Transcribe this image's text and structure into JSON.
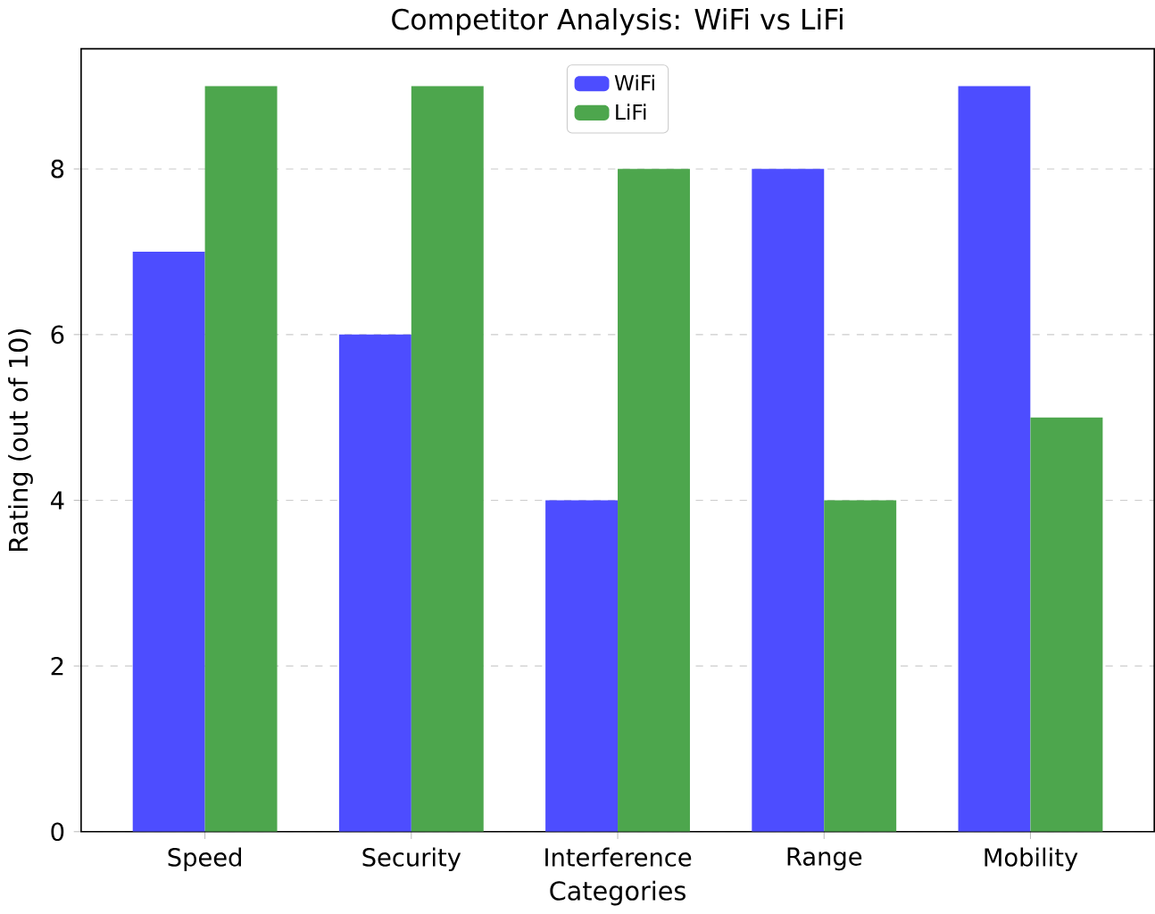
{
  "chart_data": {
    "type": "bar",
    "title": "Competitor Analysis: WiFi vs LiFi",
    "xlabel": "Categories",
    "ylabel": "Rating (out of 10)",
    "categories": [
      "Speed",
      "Security",
      "Interference",
      "Range",
      "Mobility"
    ],
    "series": [
      {
        "name": "WiFi",
        "color": "#4d4dff",
        "values": [
          7,
          6,
          4,
          8,
          9
        ]
      },
      {
        "name": "LiFi",
        "color": "#4da64d",
        "values": [
          9,
          9,
          8,
          4,
          5
        ]
      }
    ],
    "ylim": [
      0,
      9.45
    ],
    "yticks": [
      0,
      2,
      4,
      6,
      8
    ],
    "grid": "y",
    "legend": "top"
  }
}
